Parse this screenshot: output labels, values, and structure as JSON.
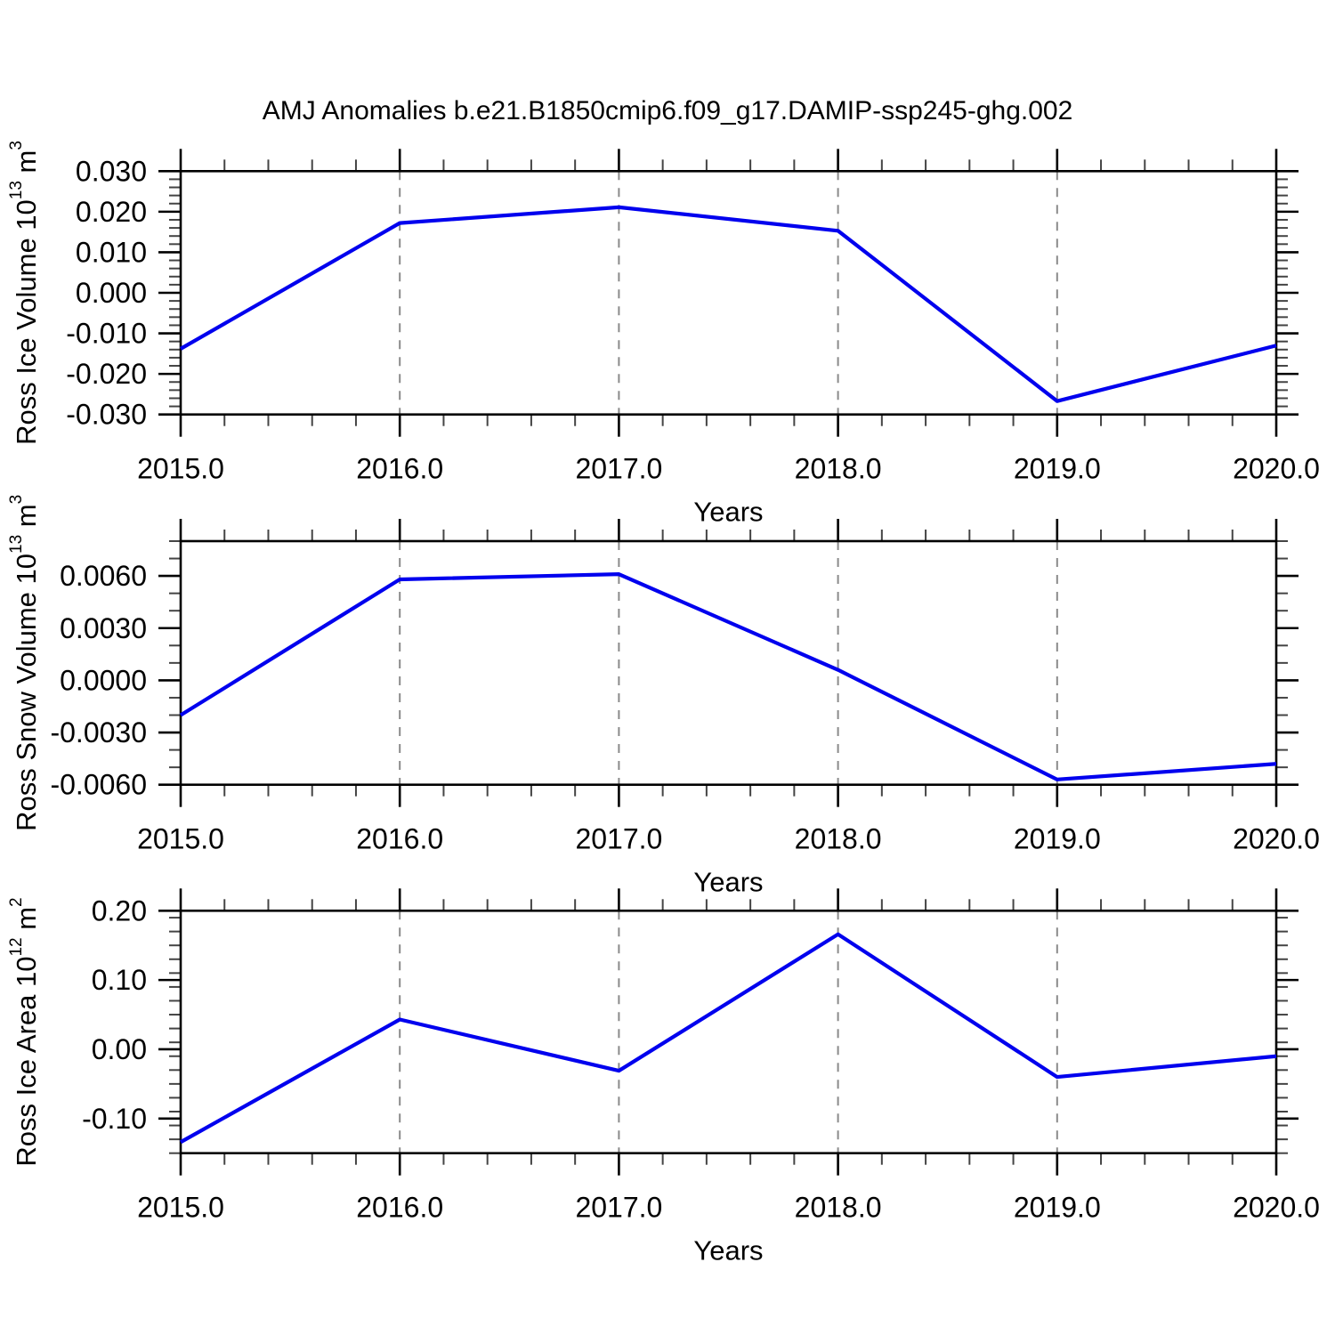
{
  "figure": {
    "title": "AMJ Anomalies b.e21.B1850cmip6.f09_g17.DAMIP-ssp245-ghg.002"
  },
  "style": {
    "line_color": "#0000ee",
    "grid_color": "#8a8a8a",
    "frame_color": "#000000",
    "minor_tick_color": "#444444"
  },
  "chart_data": [
    {
      "type": "line",
      "panel": "ross-ice-volume",
      "title": "",
      "ylabel": "Ross Ice Volume 10^13 m^3",
      "xlabel": "Years",
      "x": [
        2015,
        2016,
        2017,
        2018,
        2019,
        2020
      ],
      "x_tick_labels": [
        "2015.0",
        "2016.0",
        "2017.0",
        "2018.0",
        "2019.0",
        "2020.0"
      ],
      "values": [
        -0.0138,
        0.0172,
        0.0211,
        0.0153,
        -0.0267,
        -0.013
      ],
      "xlim": [
        2015,
        2020
      ],
      "ylim": [
        -0.03,
        0.03
      ],
      "y_ticks": [
        {
          "v": 0.03,
          "label": "0.030"
        },
        {
          "v": 0.02,
          "label": "0.020"
        },
        {
          "v": 0.01,
          "label": "0.010"
        },
        {
          "v": 0.0,
          "label": "0.000"
        },
        {
          "v": -0.01,
          "label": "-0.010"
        },
        {
          "v": -0.02,
          "label": "-0.020"
        },
        {
          "v": -0.03,
          "label": "-0.030"
        }
      ],
      "y_minor_step": 0.002,
      "x_minor_step": 0.2,
      "grid_x": [
        2016,
        2017,
        2018,
        2019
      ],
      "grid_on": true,
      "legend": "none"
    },
    {
      "type": "line",
      "panel": "ross-snow-volume",
      "title": "",
      "ylabel": "Ross Snow Volume 10^13 m^3",
      "xlabel": "Years",
      "x": [
        2015,
        2016,
        2017,
        2018,
        2019,
        2020
      ],
      "x_tick_labels": [
        "2015.0",
        "2016.0",
        "2017.0",
        "2018.0",
        "2019.0",
        "2020.0"
      ],
      "values": [
        -0.002,
        0.0058,
        0.0061,
        0.0006,
        -0.0057,
        -0.0048
      ],
      "xlim": [
        2015,
        2020
      ],
      "ylim": [
        -0.006,
        0.008
      ],
      "y_ticks": [
        {
          "v": 0.006,
          "label": "0.0060"
        },
        {
          "v": 0.003,
          "label": "0.0030"
        },
        {
          "v": 0.0,
          "label": "0.0000"
        },
        {
          "v": -0.003,
          "label": "-0.0030"
        },
        {
          "v": -0.006,
          "label": "-0.0060"
        }
      ],
      "y_minor_step": 0.001,
      "x_minor_step": 0.2,
      "grid_x": [
        2016,
        2017,
        2018,
        2019
      ],
      "grid_on": true,
      "legend": "none"
    },
    {
      "type": "line",
      "panel": "ross-ice-area",
      "title": "",
      "ylabel": "Ross Ice Area 10^12 m^2",
      "xlabel": "Years",
      "x": [
        2015,
        2016,
        2017,
        2018,
        2019,
        2020
      ],
      "x_tick_labels": [
        "2015.0",
        "2016.0",
        "2017.0",
        "2018.0",
        "2019.0",
        "2020.0"
      ],
      "values": [
        -0.134,
        0.043,
        -0.031,
        0.166,
        -0.04,
        -0.01
      ],
      "xlim": [
        2015,
        2020
      ],
      "ylim": [
        -0.15,
        0.2
      ],
      "y_ticks": [
        {
          "v": 0.2,
          "label": "0.20"
        },
        {
          "v": 0.1,
          "label": "0.10"
        },
        {
          "v": 0.0,
          "label": "0.00"
        },
        {
          "v": -0.1,
          "label": "-0.10"
        }
      ],
      "y_minor_step": 0.02,
      "x_minor_step": 0.2,
      "grid_x": [
        2016,
        2017,
        2018,
        2019
      ],
      "grid_on": true,
      "legend": "none"
    }
  ]
}
